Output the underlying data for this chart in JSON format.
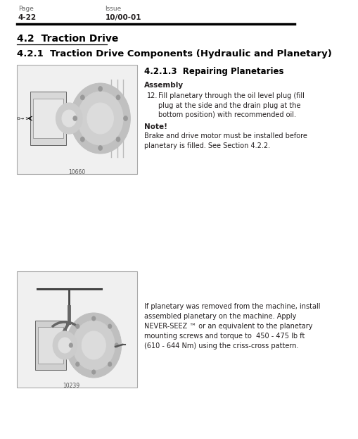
{
  "bg_color": "#ffffff",
  "page_label": "Page",
  "page_value": "4-22",
  "issue_label": "Issue",
  "issue_value": "10/00-01",
  "section_title": "4.2  Traction Drive",
  "subsection_title": "4.2.1  Traction Drive Components (Hydraulic and Planetary)",
  "sub_sub_title": "4.2.1.3  Repairing Planetaries",
  "assembly_label": "Assembly",
  "step_num": "12.",
  "step_text": "Fill planetary through the oil level plug (fill\nplug at the side and the drain plug at the\nbottom position) with recommended oil.",
  "note_label": "Note!",
  "note_text": "Brake and drive motor must be installed before\nplanetary is filled. See Section 4.2.2.",
  "body_text": "If planetary was removed from the machine, install\nassembled planetary on the machine. Apply\nNEVER-SEEZ ™ or an equivalent to the planetary\nmounting screws and torque to  450 - 475 lb ft\n(610 - 644 Nm) using the criss-cross pattern.",
  "fig1_label": "10660",
  "fig2_label": "10239",
  "text_color": "#231f20",
  "header_color": "#5b5b5b",
  "title_color": "#000000"
}
